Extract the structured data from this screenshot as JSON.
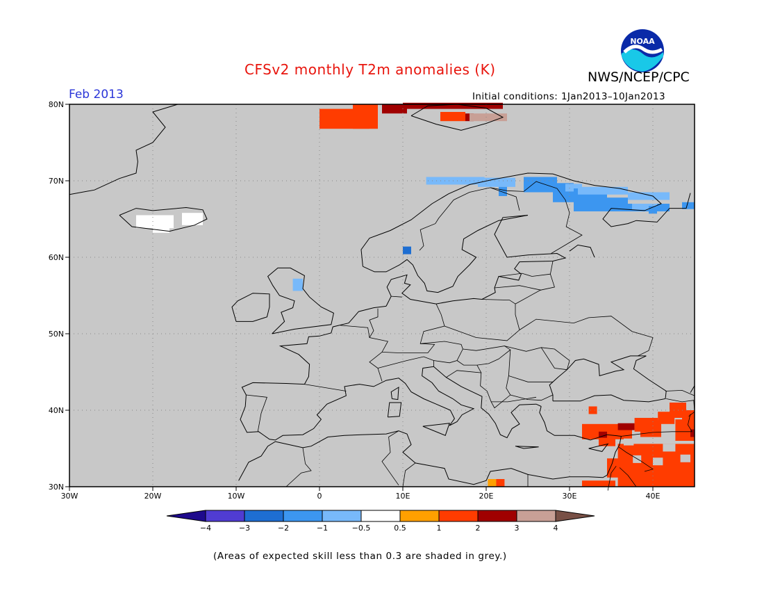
{
  "header": {
    "title": "CFSv2 monthly T2m anomalies (K)",
    "agency": "NWS/NCEP/CPC",
    "period": "Feb 2013",
    "initial_conditions": "Initial conditions: 1Jan2013–10Jan2013",
    "logo_text": "NOAA"
  },
  "map": {
    "lat_labels": [
      "80N",
      "70N",
      "60N",
      "50N",
      "40N",
      "30N"
    ],
    "lon_labels": [
      "30W",
      "20W",
      "10W",
      "0",
      "10E",
      "20E",
      "30E",
      "40E"
    ],
    "background_color": "#c8c8c8",
    "grid": true
  },
  "colorbar": {
    "labels": [
      "−4",
      "−3",
      "−2",
      "−1",
      "−0.5",
      "0.5",
      "1",
      "2",
      "3",
      "4"
    ],
    "colors": [
      "#1e0a8c",
      "#503cd2",
      "#1e6ed2",
      "#3c96f0",
      "#78b9fa",
      "#ffffff",
      "#ffa000",
      "#ff3c00",
      "#a00000",
      "#c8a096",
      "#785046"
    ]
  },
  "footnote": "(Areas of expected skill less than 0.3 are shaded in grey.)"
}
